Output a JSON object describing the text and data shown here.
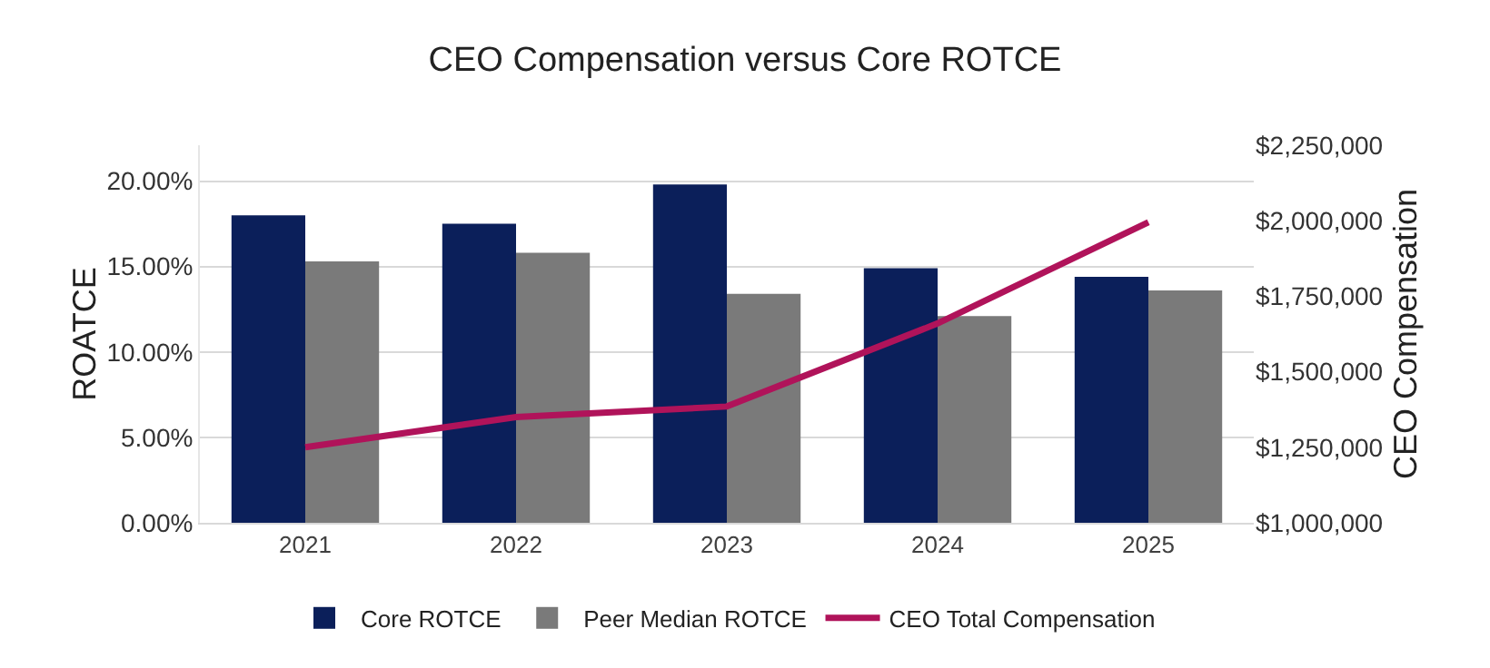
{
  "chart_data": {
    "type": "bar",
    "title": "CEO Compensation versus Core ROTCE",
    "ylabel": "ROATCE",
    "y2label": "CEO Compensation",
    "categories": [
      "2021",
      "2022",
      "2023",
      "2024",
      "2025"
    ],
    "series": [
      {
        "name": "Core ROTCE",
        "color": "#0b1f5a",
        "values": [
          18.0,
          17.5,
          19.8,
          14.9,
          14.4
        ]
      },
      {
        "name": "Peer Median ROTCE",
        "color": "#7a7a7a",
        "values": [
          15.3,
          15.8,
          13.4,
          12.1,
          13.6
        ]
      },
      {
        "name": "CEO Total Compensation",
        "type": "line",
        "axis": "y2",
        "color": "#b0135a",
        "values": [
          1250000,
          1350000,
          1385000,
          1660000,
          1995000
        ]
      }
    ],
    "ylim": [
      0,
      22.1
    ],
    "yticks": [
      {
        "value": 0,
        "label": "0.00%"
      },
      {
        "value": 5,
        "label": "5.00%"
      },
      {
        "value": 10,
        "label": "10.00%"
      },
      {
        "value": 15,
        "label": "15.00%"
      },
      {
        "value": 20,
        "label": "20.00%"
      }
    ],
    "y2lim": [
      1000000,
      2250000
    ],
    "y2ticks": [
      {
        "value": 1000000,
        "label": "$1,000,000"
      },
      {
        "value": 1250000,
        "label": "$1,250,000"
      },
      {
        "value": 1500000,
        "label": "$1,500,000"
      },
      {
        "value": 1750000,
        "label": "$1,750,000"
      },
      {
        "value": 2000000,
        "label": "$2,000,000"
      },
      {
        "value": 2250000,
        "label": "$2,250,000"
      }
    ],
    "grid": "y",
    "legend": "bottom",
    "marker": "none",
    "line_style": "solid"
  }
}
